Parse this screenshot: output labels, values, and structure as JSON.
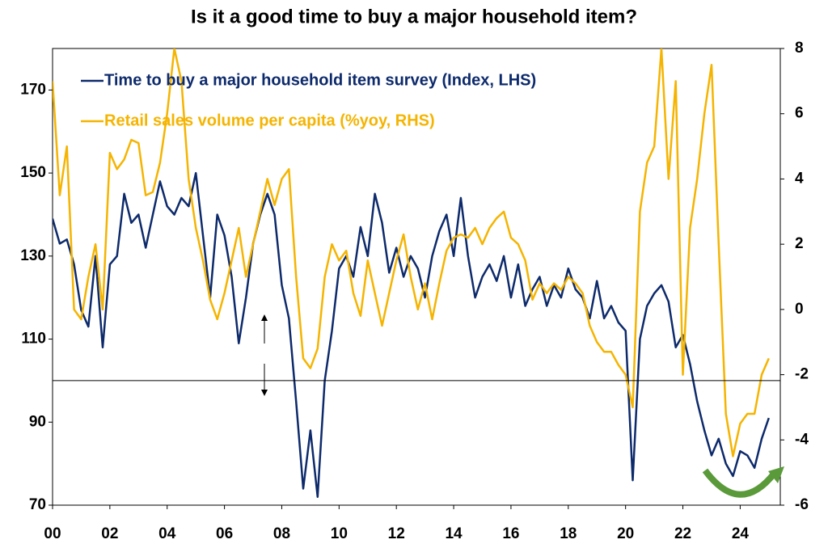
{
  "chart_data": {
    "type": "line",
    "title": "Is it a good time to buy a major household item?",
    "x": [
      0,
      0.25,
      0.5,
      0.75,
      1,
      1.25,
      1.5,
      1.75,
      2,
      2.25,
      2.5,
      2.75,
      3,
      3.25,
      3.5,
      3.75,
      4,
      4.25,
      4.5,
      4.75,
      5,
      5.25,
      5.5,
      5.75,
      6,
      6.25,
      6.5,
      6.75,
      7,
      7.25,
      7.5,
      7.75,
      8,
      8.25,
      8.5,
      8.75,
      9,
      9.25,
      9.5,
      9.75,
      10,
      10.25,
      10.5,
      10.75,
      11,
      11.25,
      11.5,
      11.75,
      12,
      12.25,
      12.5,
      12.75,
      13,
      13.25,
      13.5,
      13.75,
      14,
      14.25,
      14.5,
      14.75,
      15,
      15.25,
      15.5,
      15.75,
      16,
      16.25,
      16.5,
      16.75,
      17,
      17.25,
      17.5,
      17.75,
      18,
      18.25,
      18.5,
      18.75,
      19,
      19.25,
      19.5,
      19.75,
      20,
      20.25,
      20.5,
      20.75,
      21,
      21.25,
      21.5,
      21.75,
      22,
      22.25,
      22.5,
      22.75,
      23,
      23.25,
      23.5,
      23.75,
      24,
      24.25,
      24.5,
      24.75,
      25
    ],
    "series": [
      {
        "name": "Time to buy a major household item survey (Index, LHS)",
        "color": "#0d2a6b",
        "axis": "y",
        "values": [
          139,
          133,
          134,
          128,
          117,
          113,
          130,
          108,
          128,
          130,
          145,
          138,
          140,
          132,
          140,
          148,
          142,
          140,
          144,
          142,
          150,
          135,
          120,
          140,
          135,
          125,
          109,
          120,
          133,
          140,
          145,
          140,
          123,
          115,
          95,
          74,
          88,
          72,
          100,
          112,
          127,
          130,
          125,
          137,
          130,
          145,
          138,
          126,
          132,
          125,
          130,
          127,
          120,
          130,
          136,
          140,
          130,
          144,
          130,
          120,
          125,
          128,
          124,
          130,
          120,
          128,
          118,
          122,
          125,
          118,
          123,
          120,
          127,
          122,
          120,
          115,
          124,
          115,
          118,
          114,
          112,
          76,
          110,
          118,
          121,
          123,
          119,
          108,
          111,
          104,
          95,
          88,
          82,
          86,
          80,
          77,
          83,
          82,
          79,
          86,
          91
        ]
      },
      {
        "name": "Retail sales volume per capita (%yoy, RHS)",
        "color": "#f5b400",
        "axis": "y2",
        "values": [
          7,
          3.5,
          5,
          0,
          -0.3,
          1,
          2,
          0,
          4.8,
          4.3,
          4.6,
          5.2,
          5.1,
          3.5,
          3.6,
          4.5,
          6,
          8,
          7,
          4,
          2.5,
          1.5,
          0.3,
          -0.3,
          0.5,
          1.5,
          2.5,
          1,
          2,
          3,
          4,
          3.2,
          4,
          4.3,
          1,
          -1.5,
          -1.8,
          -1.2,
          1,
          2,
          1.5,
          1.8,
          0.5,
          -0.2,
          1.5,
          0.5,
          -0.5,
          0.5,
          1.5,
          2.3,
          1,
          0,
          0.8,
          -0.3,
          0.8,
          1.8,
          2.2,
          2.3,
          2.2,
          2.5,
          2,
          2.5,
          2.8,
          3,
          2.2,
          2,
          1.5,
          0.3,
          0.8,
          0.5,
          0.8,
          0.6,
          1,
          0.8,
          0.5,
          -0.5,
          -1,
          -1.3,
          -1.3,
          -1.7,
          -2,
          -3,
          3,
          4.5,
          5,
          8,
          4,
          7,
          -2,
          2.5,
          4,
          6,
          7.5,
          2,
          -3.2,
          -4.5,
          -3.5,
          -3.2,
          -3.2,
          -2,
          -1.5
        ]
      }
    ],
    "xlim": [
      0,
      25.4
    ],
    "xticks": [
      {
        "value": 0,
        "label": "00"
      },
      {
        "value": 2,
        "label": "02"
      },
      {
        "value": 4,
        "label": "04"
      },
      {
        "value": 6,
        "label": "06"
      },
      {
        "value": 8,
        "label": "08"
      },
      10,
      12,
      14,
      16,
      18,
      20,
      22,
      24
    ],
    "ylim": [
      70,
      180
    ],
    "yticks": [
      70,
      90,
      110,
      130,
      150,
      170
    ],
    "y2lim": [
      -6,
      8
    ],
    "y2ticks": [
      -6,
      -4,
      -2,
      0,
      2,
      4,
      6,
      8
    ],
    "reference_line": 100
  }
}
